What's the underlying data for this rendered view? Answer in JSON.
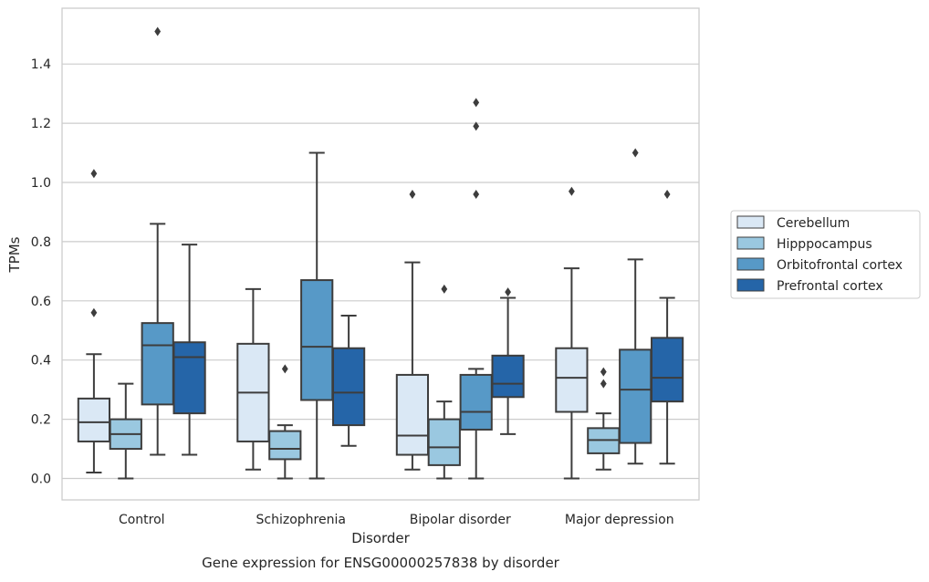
{
  "chart_data": {
    "type": "box",
    "xlabel": "Disorder",
    "ylabel": "TPMs",
    "caption": "Gene expression for ENSG00000257838 by disorder",
    "ylim": [
      -0.075,
      1.59
    ],
    "yticks": [
      "0.0",
      "0.2",
      "0.4",
      "0.6",
      "0.8",
      "1.0",
      "1.2",
      "1.4"
    ],
    "grid": "horizontal",
    "legend_position": "right",
    "categories": [
      "Control",
      "Schizophrenia",
      "Bipolar disorder",
      "Major depression"
    ],
    "series": [
      {
        "name": "Cerebellum",
        "color": "#dae8f5",
        "boxes": [
          {
            "whislo": 0.02,
            "q1": 0.125,
            "med": 0.19,
            "q3": 0.27,
            "whishi": 0.42,
            "fliers": [
              0.56,
              1.03
            ]
          },
          {
            "whislo": 0.03,
            "q1": 0.125,
            "med": 0.29,
            "q3": 0.455,
            "whishi": 0.64,
            "fliers": []
          },
          {
            "whislo": 0.03,
            "q1": 0.08,
            "med": 0.145,
            "q3": 0.35,
            "whishi": 0.73,
            "fliers": [
              0.96
            ]
          },
          {
            "whislo": 0.0,
            "q1": 0.225,
            "med": 0.34,
            "q3": 0.44,
            "whishi": 0.71,
            "fliers": [
              0.97
            ]
          }
        ]
      },
      {
        "name": "Hipppocampus",
        "color": "#9ac8e0",
        "boxes": [
          {
            "whislo": 0.0,
            "q1": 0.1,
            "med": 0.15,
            "q3": 0.2,
            "whishi": 0.32,
            "fliers": []
          },
          {
            "whislo": 0.0,
            "q1": 0.065,
            "med": 0.1,
            "q3": 0.16,
            "whishi": 0.18,
            "fliers": [
              0.37
            ]
          },
          {
            "whislo": 0.0,
            "q1": 0.045,
            "med": 0.105,
            "q3": 0.2,
            "whishi": 0.26,
            "fliers": [
              0.64
            ]
          },
          {
            "whislo": 0.03,
            "q1": 0.085,
            "med": 0.13,
            "q3": 0.17,
            "whishi": 0.22,
            "fliers": [
              0.32,
              0.36
            ]
          }
        ]
      },
      {
        "name": "Orbitofrontal cortex",
        "color": "#5799c7",
        "boxes": [
          {
            "whislo": 0.08,
            "q1": 0.25,
            "med": 0.45,
            "q3": 0.525,
            "whishi": 0.86,
            "fliers": [
              1.51
            ]
          },
          {
            "whislo": 0.0,
            "q1": 0.265,
            "med": 0.445,
            "q3": 0.67,
            "whishi": 1.1,
            "fliers": []
          },
          {
            "whislo": 0.0,
            "q1": 0.165,
            "med": 0.225,
            "q3": 0.35,
            "whishi": 0.37,
            "fliers": [
              0.96,
              1.19,
              1.27
            ]
          },
          {
            "whislo": 0.05,
            "q1": 0.12,
            "med": 0.3,
            "q3": 0.435,
            "whishi": 0.74,
            "fliers": [
              1.1
            ]
          }
        ]
      },
      {
        "name": "Prefrontal cortex",
        "color": "#2565a8",
        "boxes": [
          {
            "whislo": 0.08,
            "q1": 0.22,
            "med": 0.41,
            "q3": 0.46,
            "whishi": 0.79,
            "fliers": []
          },
          {
            "whislo": 0.11,
            "q1": 0.18,
            "med": 0.29,
            "q3": 0.44,
            "whishi": 0.55,
            "fliers": []
          },
          {
            "whislo": 0.15,
            "q1": 0.275,
            "med": 0.32,
            "q3": 0.415,
            "whishi": 0.61,
            "fliers": [
              0.63
            ]
          },
          {
            "whislo": 0.05,
            "q1": 0.26,
            "med": 0.34,
            "q3": 0.475,
            "whishi": 0.61,
            "fliers": [
              0.96
            ]
          }
        ]
      }
    ]
  }
}
